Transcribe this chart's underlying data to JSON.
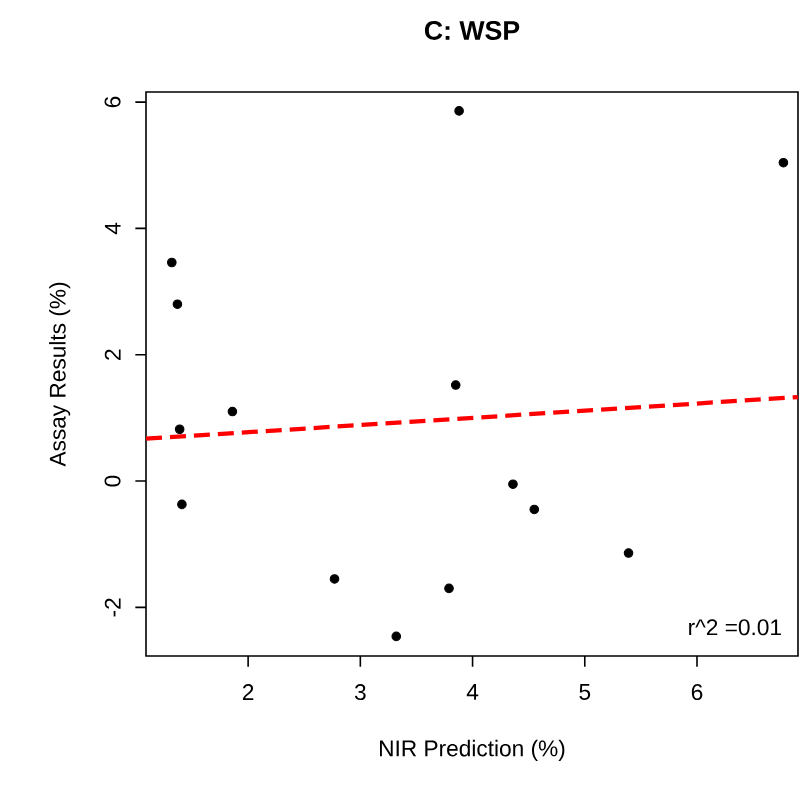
{
  "chart_data": {
    "type": "scatter",
    "title": "C: WSP",
    "xlabel": "NIR Prediction (%)",
    "ylabel": "Assay Results (%)",
    "xlim": [
      1.09,
      6.9
    ],
    "ylim": [
      -2.77,
      6.16
    ],
    "xticks": [
      2,
      3,
      4,
      5,
      6
    ],
    "yticks": [
      -2,
      0,
      2,
      4,
      6
    ],
    "series": [
      {
        "color": "#000000",
        "marker": "circle",
        "x": [
          1.32,
          1.37,
          1.39,
          1.41,
          1.86,
          2.77,
          3.32,
          3.79,
          3.85,
          3.88,
          4.36,
          4.55,
          5.39,
          6.77
        ],
        "values": [
          3.46,
          2.8,
          0.82,
          -0.37,
          1.1,
          -1.55,
          -2.46,
          -1.7,
          1.52,
          5.86,
          -0.05,
          -0.45,
          -1.14,
          5.04
        ]
      },
      {
        "type": "line",
        "color": "#ff0000",
        "line_style": "dashed",
        "x": [
          1.09,
          6.9
        ],
        "values": [
          0.67,
          1.33
        ]
      }
    ],
    "annotations": [
      "r^2 =0.01"
    ]
  }
}
